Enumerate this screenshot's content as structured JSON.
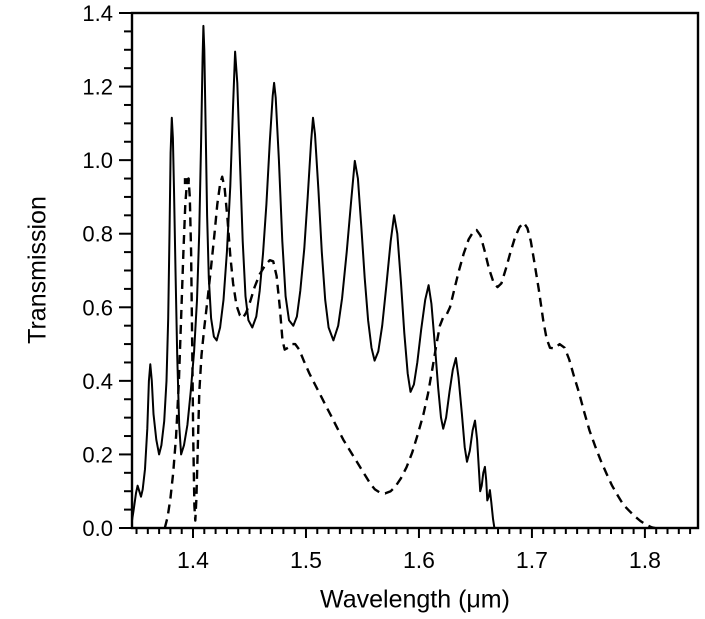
{
  "figure": {
    "background_color": "#ffffff",
    "line_color": "#000000"
  },
  "chart_data": {
    "type": "line",
    "title": "",
    "xlabel": "Wavelength (μm)",
    "ylabel": "Transmission",
    "xlim": [
      1.346,
      1.847
    ],
    "ylim": [
      0,
      1.4
    ],
    "grid": "off",
    "legend": "none",
    "x_axis": {
      "label": "Wavelength (μm)",
      "major_ticks": [
        1.4,
        1.5,
        1.6,
        1.7,
        1.8
      ],
      "major_tick_labels": [
        "1.4",
        "1.5",
        "1.6",
        "1.7",
        "1.8"
      ],
      "minor_tick_step": 0.01
    },
    "y_axis": {
      "label": "Transmission",
      "major_ticks": [
        0.0,
        0.2,
        0.4,
        0.6,
        0.8,
        1.0,
        1.2,
        1.4
      ],
      "major_tick_labels": [
        "0.0",
        "0.2",
        "0.4",
        "0.6",
        "0.8",
        "1.0",
        "1.2",
        "1.4"
      ],
      "minor_tick_step": 0.05
    },
    "marker": {
      "shape": "filled-square",
      "x": 1.3945,
      "y": 0.943,
      "color": "#000000"
    },
    "series": [
      {
        "name": "solid-spectrum",
        "style": "solid",
        "color": "#000000",
        "points": [
          [
            1.346,
            0.02
          ],
          [
            1.3475,
            0.05
          ],
          [
            1.3495,
            0.095
          ],
          [
            1.351,
            0.115
          ],
          [
            1.3525,
            0.1
          ],
          [
            1.354,
            0.085
          ],
          [
            1.3555,
            0.105
          ],
          [
            1.3575,
            0.16
          ],
          [
            1.3595,
            0.27
          ],
          [
            1.361,
            0.4
          ],
          [
            1.3622,
            0.445
          ],
          [
            1.3635,
            0.4
          ],
          [
            1.365,
            0.31
          ],
          [
            1.3675,
            0.24
          ],
          [
            1.37,
            0.2
          ],
          [
            1.372,
            0.225
          ],
          [
            1.3745,
            0.29
          ],
          [
            1.3765,
            0.4
          ],
          [
            1.378,
            0.57
          ],
          [
            1.3792,
            0.8
          ],
          [
            1.3802,
            1.02
          ],
          [
            1.3812,
            1.115
          ],
          [
            1.3822,
            1.06
          ],
          [
            1.3832,
            0.92
          ],
          [
            1.3845,
            0.7
          ],
          [
            1.386,
            0.47
          ],
          [
            1.3878,
            0.28
          ],
          [
            1.3895,
            0.2
          ],
          [
            1.392,
            0.225
          ],
          [
            1.395,
            0.28
          ],
          [
            1.398,
            0.37
          ],
          [
            1.401,
            0.48
          ],
          [
            1.4035,
            0.62
          ],
          [
            1.4055,
            0.8
          ],
          [
            1.4072,
            1.05
          ],
          [
            1.4085,
            1.28
          ],
          [
            1.4092,
            1.365
          ],
          [
            1.41,
            1.3
          ],
          [
            1.4112,
            1.08
          ],
          [
            1.4125,
            0.85
          ],
          [
            1.414,
            0.68
          ],
          [
            1.416,
            0.57
          ],
          [
            1.4185,
            0.52
          ],
          [
            1.421,
            0.51
          ],
          [
            1.424,
            0.545
          ],
          [
            1.427,
            0.62
          ],
          [
            1.43,
            0.75
          ],
          [
            1.433,
            0.93
          ],
          [
            1.4355,
            1.15
          ],
          [
            1.4373,
            1.295
          ],
          [
            1.4392,
            1.21
          ],
          [
            1.4415,
            1.0
          ],
          [
            1.444,
            0.78
          ],
          [
            1.4465,
            0.63
          ],
          [
            1.449,
            0.565
          ],
          [
            1.4525,
            0.545
          ],
          [
            1.456,
            0.575
          ],
          [
            1.459,
            0.645
          ],
          [
            1.462,
            0.745
          ],
          [
            1.465,
            0.88
          ],
          [
            1.468,
            1.05
          ],
          [
            1.4705,
            1.175
          ],
          [
            1.4718,
            1.21
          ],
          [
            1.4732,
            1.17
          ],
          [
            1.476,
            1.0
          ],
          [
            1.479,
            0.78
          ],
          [
            1.482,
            0.63
          ],
          [
            1.485,
            0.565
          ],
          [
            1.4888,
            0.55
          ],
          [
            1.492,
            0.575
          ],
          [
            1.495,
            0.645
          ],
          [
            1.4985,
            0.76
          ],
          [
            1.5015,
            0.9
          ],
          [
            1.5045,
            1.05
          ],
          [
            1.5062,
            1.115
          ],
          [
            1.508,
            1.07
          ],
          [
            1.511,
            0.92
          ],
          [
            1.514,
            0.75
          ],
          [
            1.517,
            0.62
          ],
          [
            1.52,
            0.545
          ],
          [
            1.5243,
            0.51
          ],
          [
            1.5285,
            0.55
          ],
          [
            1.532,
            0.625
          ],
          [
            1.536,
            0.75
          ],
          [
            1.54,
            0.89
          ],
          [
            1.5432,
            0.998
          ],
          [
            1.546,
            0.95
          ],
          [
            1.549,
            0.82
          ],
          [
            1.552,
            0.68
          ],
          [
            1.555,
            0.565
          ],
          [
            1.558,
            0.49
          ],
          [
            1.5607,
            0.455
          ],
          [
            1.564,
            0.48
          ],
          [
            1.5675,
            0.55
          ],
          [
            1.571,
            0.655
          ],
          [
            1.575,
            0.78
          ],
          [
            1.578,
            0.85
          ],
          [
            1.5808,
            0.8
          ],
          [
            1.584,
            0.67
          ],
          [
            1.587,
            0.53
          ],
          [
            1.59,
            0.42
          ],
          [
            1.5925,
            0.37
          ],
          [
            1.5955,
            0.39
          ],
          [
            1.5985,
            0.45
          ],
          [
            1.602,
            0.54
          ],
          [
            1.6055,
            0.62
          ],
          [
            1.6085,
            0.66
          ],
          [
            1.611,
            0.61
          ],
          [
            1.614,
            0.5
          ],
          [
            1.617,
            0.38
          ],
          [
            1.6195,
            0.3
          ],
          [
            1.6215,
            0.27
          ],
          [
            1.624,
            0.3
          ],
          [
            1.627,
            0.37
          ],
          [
            1.63,
            0.43
          ],
          [
            1.6327,
            0.462
          ],
          [
            1.635,
            0.41
          ],
          [
            1.638,
            0.31
          ],
          [
            1.6405,
            0.22
          ],
          [
            1.6425,
            0.18
          ],
          [
            1.645,
            0.21
          ],
          [
            1.6475,
            0.265
          ],
          [
            1.6496,
            0.292
          ],
          [
            1.6515,
            0.24
          ],
          [
            1.6532,
            0.15
          ],
          [
            1.6542,
            0.1
          ],
          [
            1.6555,
            0.115
          ],
          [
            1.657,
            0.15
          ],
          [
            1.6584,
            0.166
          ],
          [
            1.6595,
            0.13
          ],
          [
            1.6605,
            0.075
          ],
          [
            1.6617,
            0.085
          ],
          [
            1.6628,
            0.103
          ],
          [
            1.664,
            0.07
          ],
          [
            1.6655,
            0.025
          ],
          [
            1.6668,
            0.0
          ]
        ]
      },
      {
        "name": "dashed-spectrum",
        "style": "dashed",
        "color": "#000000",
        "points": [
          [
            1.375,
            0.0
          ],
          [
            1.3775,
            0.03
          ],
          [
            1.38,
            0.08
          ],
          [
            1.3825,
            0.15
          ],
          [
            1.385,
            0.25
          ],
          [
            1.3875,
            0.4
          ],
          [
            1.3895,
            0.57
          ],
          [
            1.3915,
            0.75
          ],
          [
            1.3932,
            0.88
          ],
          [
            1.3948,
            0.945
          ],
          [
            1.396,
            0.95
          ],
          [
            1.3972,
            0.9
          ],
          [
            1.3983,
            0.75
          ],
          [
            1.3993,
            0.5
          ],
          [
            1.4002,
            0.25
          ],
          [
            1.4012,
            0.06
          ],
          [
            1.402,
            0.02
          ],
          [
            1.403,
            0.08
          ],
          [
            1.4042,
            0.22
          ],
          [
            1.4056,
            0.37
          ],
          [
            1.4075,
            0.47
          ],
          [
            1.41,
            0.545
          ],
          [
            1.413,
            0.625
          ],
          [
            1.416,
            0.71
          ],
          [
            1.419,
            0.8
          ],
          [
            1.4215,
            0.88
          ],
          [
            1.424,
            0.935
          ],
          [
            1.4258,
            0.955
          ],
          [
            1.428,
            0.925
          ],
          [
            1.4305,
            0.84
          ],
          [
            1.433,
            0.74
          ],
          [
            1.4355,
            0.665
          ],
          [
            1.4385,
            0.605
          ],
          [
            1.4415,
            0.578
          ],
          [
            1.444,
            0.57
          ],
          [
            1.447,
            0.585
          ],
          [
            1.4505,
            0.615
          ],
          [
            1.4545,
            0.655
          ],
          [
            1.459,
            0.69
          ],
          [
            1.464,
            0.715
          ],
          [
            1.468,
            0.728
          ],
          [
            1.471,
            0.725
          ],
          [
            1.474,
            0.685
          ],
          [
            1.4768,
            0.6
          ],
          [
            1.4792,
            0.51
          ],
          [
            1.4812,
            0.485
          ],
          [
            1.484,
            0.49
          ],
          [
            1.4875,
            0.5
          ],
          [
            1.4905,
            0.5
          ],
          [
            1.494,
            0.485
          ],
          [
            1.498,
            0.455
          ],
          [
            1.503,
            0.42
          ],
          [
            1.508,
            0.39
          ],
          [
            1.513,
            0.36
          ],
          [
            1.518,
            0.33
          ],
          [
            1.523,
            0.3
          ],
          [
            1.528,
            0.27
          ],
          [
            1.533,
            0.24
          ],
          [
            1.538,
            0.215
          ],
          [
            1.543,
            0.19
          ],
          [
            1.548,
            0.165
          ],
          [
            1.553,
            0.14
          ],
          [
            1.557,
            0.12
          ],
          [
            1.561,
            0.105
          ],
          [
            1.565,
            0.097
          ],
          [
            1.57,
            0.094
          ],
          [
            1.575,
            0.1
          ],
          [
            1.579,
            0.112
          ],
          [
            1.584,
            0.135
          ],
          [
            1.589,
            0.165
          ],
          [
            1.594,
            0.205
          ],
          [
            1.599,
            0.255
          ],
          [
            1.604,
            0.31
          ],
          [
            1.608,
            0.365
          ],
          [
            1.612,
            0.435
          ],
          [
            1.6155,
            0.5
          ],
          [
            1.6185,
            0.55
          ],
          [
            1.6215,
            0.573
          ],
          [
            1.6245,
            0.58
          ],
          [
            1.6275,
            0.6
          ],
          [
            1.631,
            0.645
          ],
          [
            1.635,
            0.695
          ],
          [
            1.6395,
            0.745
          ],
          [
            1.644,
            0.785
          ],
          [
            1.648,
            0.805
          ],
          [
            1.651,
            0.81
          ],
          [
            1.6545,
            0.795
          ],
          [
            1.658,
            0.755
          ],
          [
            1.662,
            0.705
          ],
          [
            1.666,
            0.668
          ],
          [
            1.6695,
            0.655
          ],
          [
            1.673,
            0.665
          ],
          [
            1.677,
            0.705
          ],
          [
            1.681,
            0.75
          ],
          [
            1.685,
            0.79
          ],
          [
            1.689,
            0.818
          ],
          [
            1.6928,
            0.83
          ],
          [
            1.696,
            0.815
          ],
          [
            1.699,
            0.78
          ],
          [
            1.702,
            0.725
          ],
          [
            1.706,
            0.65
          ],
          [
            1.71,
            0.565
          ],
          [
            1.713,
            0.515
          ],
          [
            1.716,
            0.49
          ],
          [
            1.72,
            0.488
          ],
          [
            1.7245,
            0.5
          ],
          [
            1.729,
            0.49
          ],
          [
            1.733,
            0.458
          ],
          [
            1.737,
            0.415
          ],
          [
            1.7415,
            0.37
          ],
          [
            1.746,
            0.318
          ],
          [
            1.751,
            0.265
          ],
          [
            1.756,
            0.222
          ],
          [
            1.761,
            0.183
          ],
          [
            1.766,
            0.148
          ],
          [
            1.771,
            0.115
          ],
          [
            1.776,
            0.088
          ],
          [
            1.781,
            0.063
          ],
          [
            1.786,
            0.047
          ],
          [
            1.791,
            0.032
          ],
          [
            1.796,
            0.019
          ],
          [
            1.801,
            0.009
          ],
          [
            1.806,
            0.002
          ],
          [
            1.809,
            0.0
          ]
        ]
      }
    ]
  }
}
